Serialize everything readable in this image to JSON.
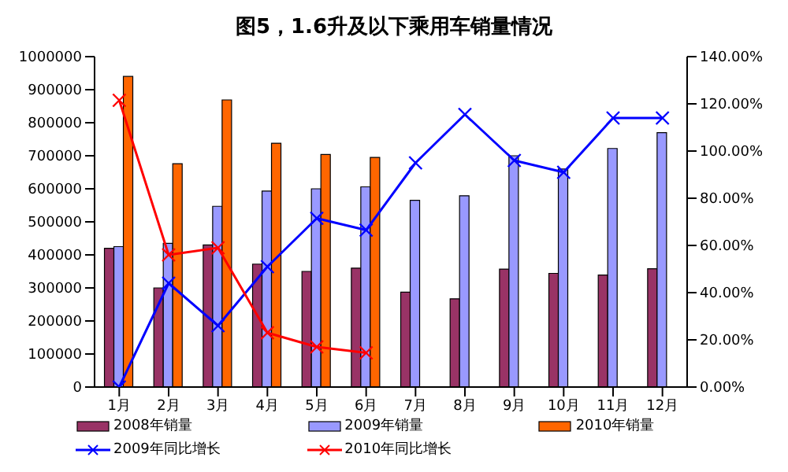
{
  "chart_data": {
    "type": "bar",
    "title": "图5，1.6升及以下乘用车销量情况",
    "categories": [
      "1月",
      "2月",
      "3月",
      "4月",
      "5月",
      "6月",
      "7月",
      "8月",
      "9月",
      "10月",
      "11月",
      "12月"
    ],
    "series": [
      {
        "name": "2008年销量",
        "color": "#993366",
        "values": [
          420000,
          300000,
          430000,
          372000,
          350000,
          360000,
          287000,
          267000,
          357000,
          344000,
          339000,
          358000
        ]
      },
      {
        "name": "2009年销量",
        "color": "#9999ff",
        "values": [
          425000,
          435000,
          547000,
          593000,
          600000,
          606000,
          565000,
          579000,
          700000,
          660000,
          722000,
          770000
        ]
      },
      {
        "name": "2010年销量",
        "color": "#ff6600",
        "values": [
          940000,
          676000,
          869000,
          738000,
          704000,
          695000,
          null,
          null,
          null,
          null,
          null,
          null
        ]
      },
      {
        "name": "2009年同比增长",
        "type": "line",
        "axis": "y2",
        "color": "#0000ff",
        "values": [
          0,
          44,
          26,
          51,
          71.5,
          66.5,
          95,
          115.5,
          96,
          91,
          114,
          114
        ]
      },
      {
        "name": "2010年同比增长",
        "type": "line",
        "axis": "y2",
        "color": "#ff0000",
        "values": [
          121.5,
          56,
          59,
          23,
          17,
          14.5,
          null,
          null,
          null,
          null,
          null,
          null
        ]
      }
    ],
    "ylim": [
      0,
      1000000
    ],
    "yticks": [
      0,
      100000,
      200000,
      300000,
      400000,
      500000,
      600000,
      700000,
      800000,
      900000,
      1000000
    ],
    "y2lim": [
      0,
      140
    ],
    "y2ticks": [
      {
        "value": 0,
        "label": "0.00%"
      },
      {
        "value": 20,
        "label": "20.00%"
      },
      {
        "value": 40,
        "label": "40.00%"
      },
      {
        "value": 60,
        "label": "60.00%"
      },
      {
        "value": 80,
        "label": "80.00%"
      },
      {
        "value": 100,
        "label": "100.00%"
      },
      {
        "value": 120,
        "label": "120.00%"
      },
      {
        "value": 140,
        "label": "140.00%"
      }
    ],
    "marker": "cross",
    "grid": false,
    "legend": "bottom"
  }
}
